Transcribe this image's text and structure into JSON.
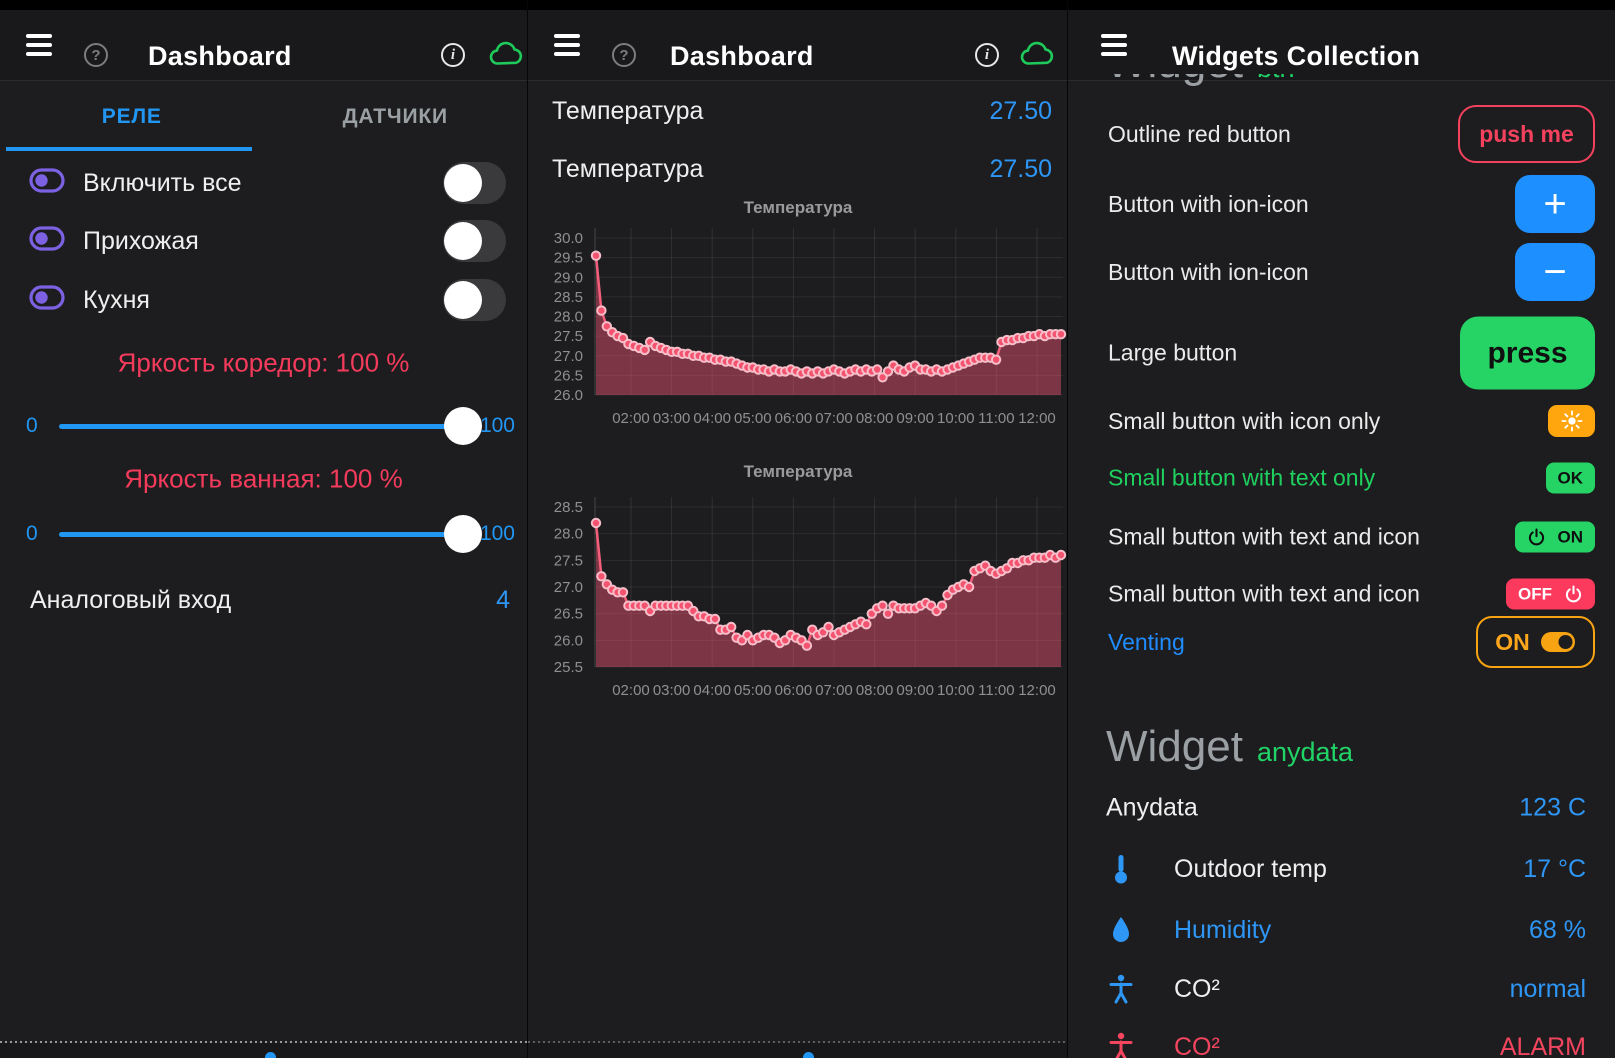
{
  "left": {
    "title": "Dashboard",
    "tabs": [
      {
        "label": "РЕЛЕ"
      },
      {
        "label": "ДАТЧИКИ"
      }
    ],
    "switches": [
      {
        "label": "Включить все",
        "state": "off"
      },
      {
        "label": "Прихожая",
        "state": "off"
      },
      {
        "label": "Кухня",
        "state": "off"
      }
    ],
    "sliders": [
      {
        "caption": "Яркость коредор: 100 %",
        "min": "0",
        "max": "100",
        "value": 100
      },
      {
        "caption": "Яркость ванная: 100 %",
        "min": "0",
        "max": "100",
        "value": 100
      }
    ],
    "analog": {
      "label": "Аналоговый вход",
      "value": "4"
    }
  },
  "middle": {
    "title": "Dashboard",
    "rows": [
      {
        "label": "Температура",
        "value": "27.50"
      },
      {
        "label": "Температура",
        "value": "27.50"
      }
    ]
  },
  "right": {
    "title": "Widgets Collection",
    "clipped_heading": {
      "name": "Widget",
      "tag": "btn"
    },
    "button_rows": [
      {
        "label": "Outline red button",
        "button_text": "push me"
      },
      {
        "label": "Button with ion-icon",
        "glyph": "+"
      },
      {
        "label": "Button with ion-icon",
        "glyph": "−"
      },
      {
        "label": "Large button",
        "button_text": "press"
      },
      {
        "label": "Small button with icon only",
        "icon": "sun"
      },
      {
        "label": "Small button with text only",
        "button_text": "OK"
      },
      {
        "label": "Small button with text and icon",
        "button_text": "ON",
        "icon": "power"
      },
      {
        "label": "Small button with text and icon",
        "button_text": "OFF",
        "icon": "power"
      },
      {
        "label": "Venting",
        "button_text": "ON",
        "icon": "toggle-on"
      }
    ],
    "section_heading": {
      "name": "Widget",
      "tag": "anydata"
    },
    "data_rows": [
      {
        "label": "Anydata",
        "value": "123 C"
      },
      {
        "label": "Outdoor temp",
        "value": "17 °C",
        "icon": "thermometer"
      },
      {
        "label": "Humidity",
        "value": "68 %",
        "icon": "droplet"
      },
      {
        "label": "CO²",
        "value": "normal",
        "icon": "person"
      },
      {
        "label": "CO²",
        "value": "ALARM",
        "icon": "person-alarm"
      }
    ]
  },
  "chart_data": [
    {
      "type": "line",
      "title": "Температура",
      "xlabel": "",
      "ylabel": "",
      "ylim": [
        26.0,
        30.0
      ],
      "grid": true,
      "legend": false,
      "x_ticks": [
        "02:00",
        "03:00",
        "04:00",
        "05:00",
        "06:00",
        "07:00",
        "08:00",
        "09:00",
        "10:00",
        "11:00",
        "12:00"
      ],
      "y_ticks": [
        "30.0",
        "29.5",
        "29.0",
        "28.5",
        "28.0",
        "27.5",
        "27.0",
        "26.5",
        "26.0"
      ],
      "values": [
        29.55,
        28.15,
        27.75,
        27.6,
        27.5,
        27.45,
        27.3,
        27.25,
        27.2,
        27.15,
        27.35,
        27.25,
        27.2,
        27.15,
        27.1,
        27.1,
        27.05,
        27.05,
        27.0,
        27.0,
        26.95,
        26.95,
        26.9,
        26.9,
        26.85,
        26.85,
        26.8,
        26.75,
        26.7,
        26.7,
        26.65,
        26.65,
        26.6,
        26.65,
        26.6,
        26.6,
        26.65,
        26.6,
        26.55,
        26.6,
        26.55,
        26.6,
        26.55,
        26.6,
        26.65,
        26.6,
        26.55,
        26.6,
        26.65,
        26.6,
        26.65,
        26.6,
        26.65,
        26.45,
        26.6,
        26.75,
        26.65,
        26.6,
        26.7,
        26.75,
        26.65,
        26.65,
        26.6,
        26.65,
        26.6,
        26.65,
        26.7,
        26.75,
        26.8,
        26.85,
        26.9,
        26.95,
        26.95,
        26.95,
        26.9,
        27.35,
        27.4,
        27.4,
        27.45,
        27.45,
        27.5,
        27.5,
        27.55,
        27.5,
        27.55,
        27.55,
        27.55
      ]
    },
    {
      "type": "line",
      "title": "Температура",
      "xlabel": "",
      "ylabel": "",
      "ylim": [
        25.5,
        28.5
      ],
      "grid": true,
      "legend": false,
      "x_ticks": [
        "02:00",
        "03:00",
        "04:00",
        "05:00",
        "06:00",
        "07:00",
        "08:00",
        "09:00",
        "10:00",
        "11:00",
        "12:00"
      ],
      "y_ticks": [
        "28.5",
        "28.0",
        "27.5",
        "27.0",
        "26.5",
        "26.0",
        "25.5"
      ],
      "values": [
        28.2,
        27.2,
        27.05,
        26.95,
        26.9,
        26.9,
        26.65,
        26.65,
        26.65,
        26.65,
        26.55,
        26.65,
        26.65,
        26.65,
        26.65,
        26.65,
        26.65,
        26.65,
        26.55,
        26.45,
        26.45,
        26.4,
        26.4,
        26.2,
        26.2,
        26.25,
        26.05,
        26.0,
        26.1,
        26.0,
        26.05,
        26.1,
        26.1,
        26.05,
        25.95,
        26.0,
        26.1,
        26.05,
        26.0,
        25.9,
        26.2,
        26.1,
        26.15,
        26.25,
        26.1,
        26.15,
        26.2,
        26.25,
        26.3,
        26.35,
        26.3,
        26.5,
        26.6,
        26.65,
        26.5,
        26.65,
        26.6,
        26.6,
        26.6,
        26.6,
        26.65,
        26.7,
        26.65,
        26.55,
        26.65,
        26.85,
        26.95,
        27.0,
        27.05,
        27.0,
        27.3,
        27.35,
        27.4,
        27.3,
        27.25,
        27.3,
        27.35,
        27.45,
        27.45,
        27.5,
        27.5,
        27.55,
        27.55,
        27.55,
        27.6,
        27.55,
        27.6
      ]
    }
  ],
  "colors": {
    "accent_blue": "#2196f3",
    "value_blue": "#2e96f5",
    "pink_red": "#f43b5c",
    "green": "#26d466",
    "orange": "#ffa60e",
    "purple": "#7c62e3",
    "chart_line": "#f35f7b"
  }
}
